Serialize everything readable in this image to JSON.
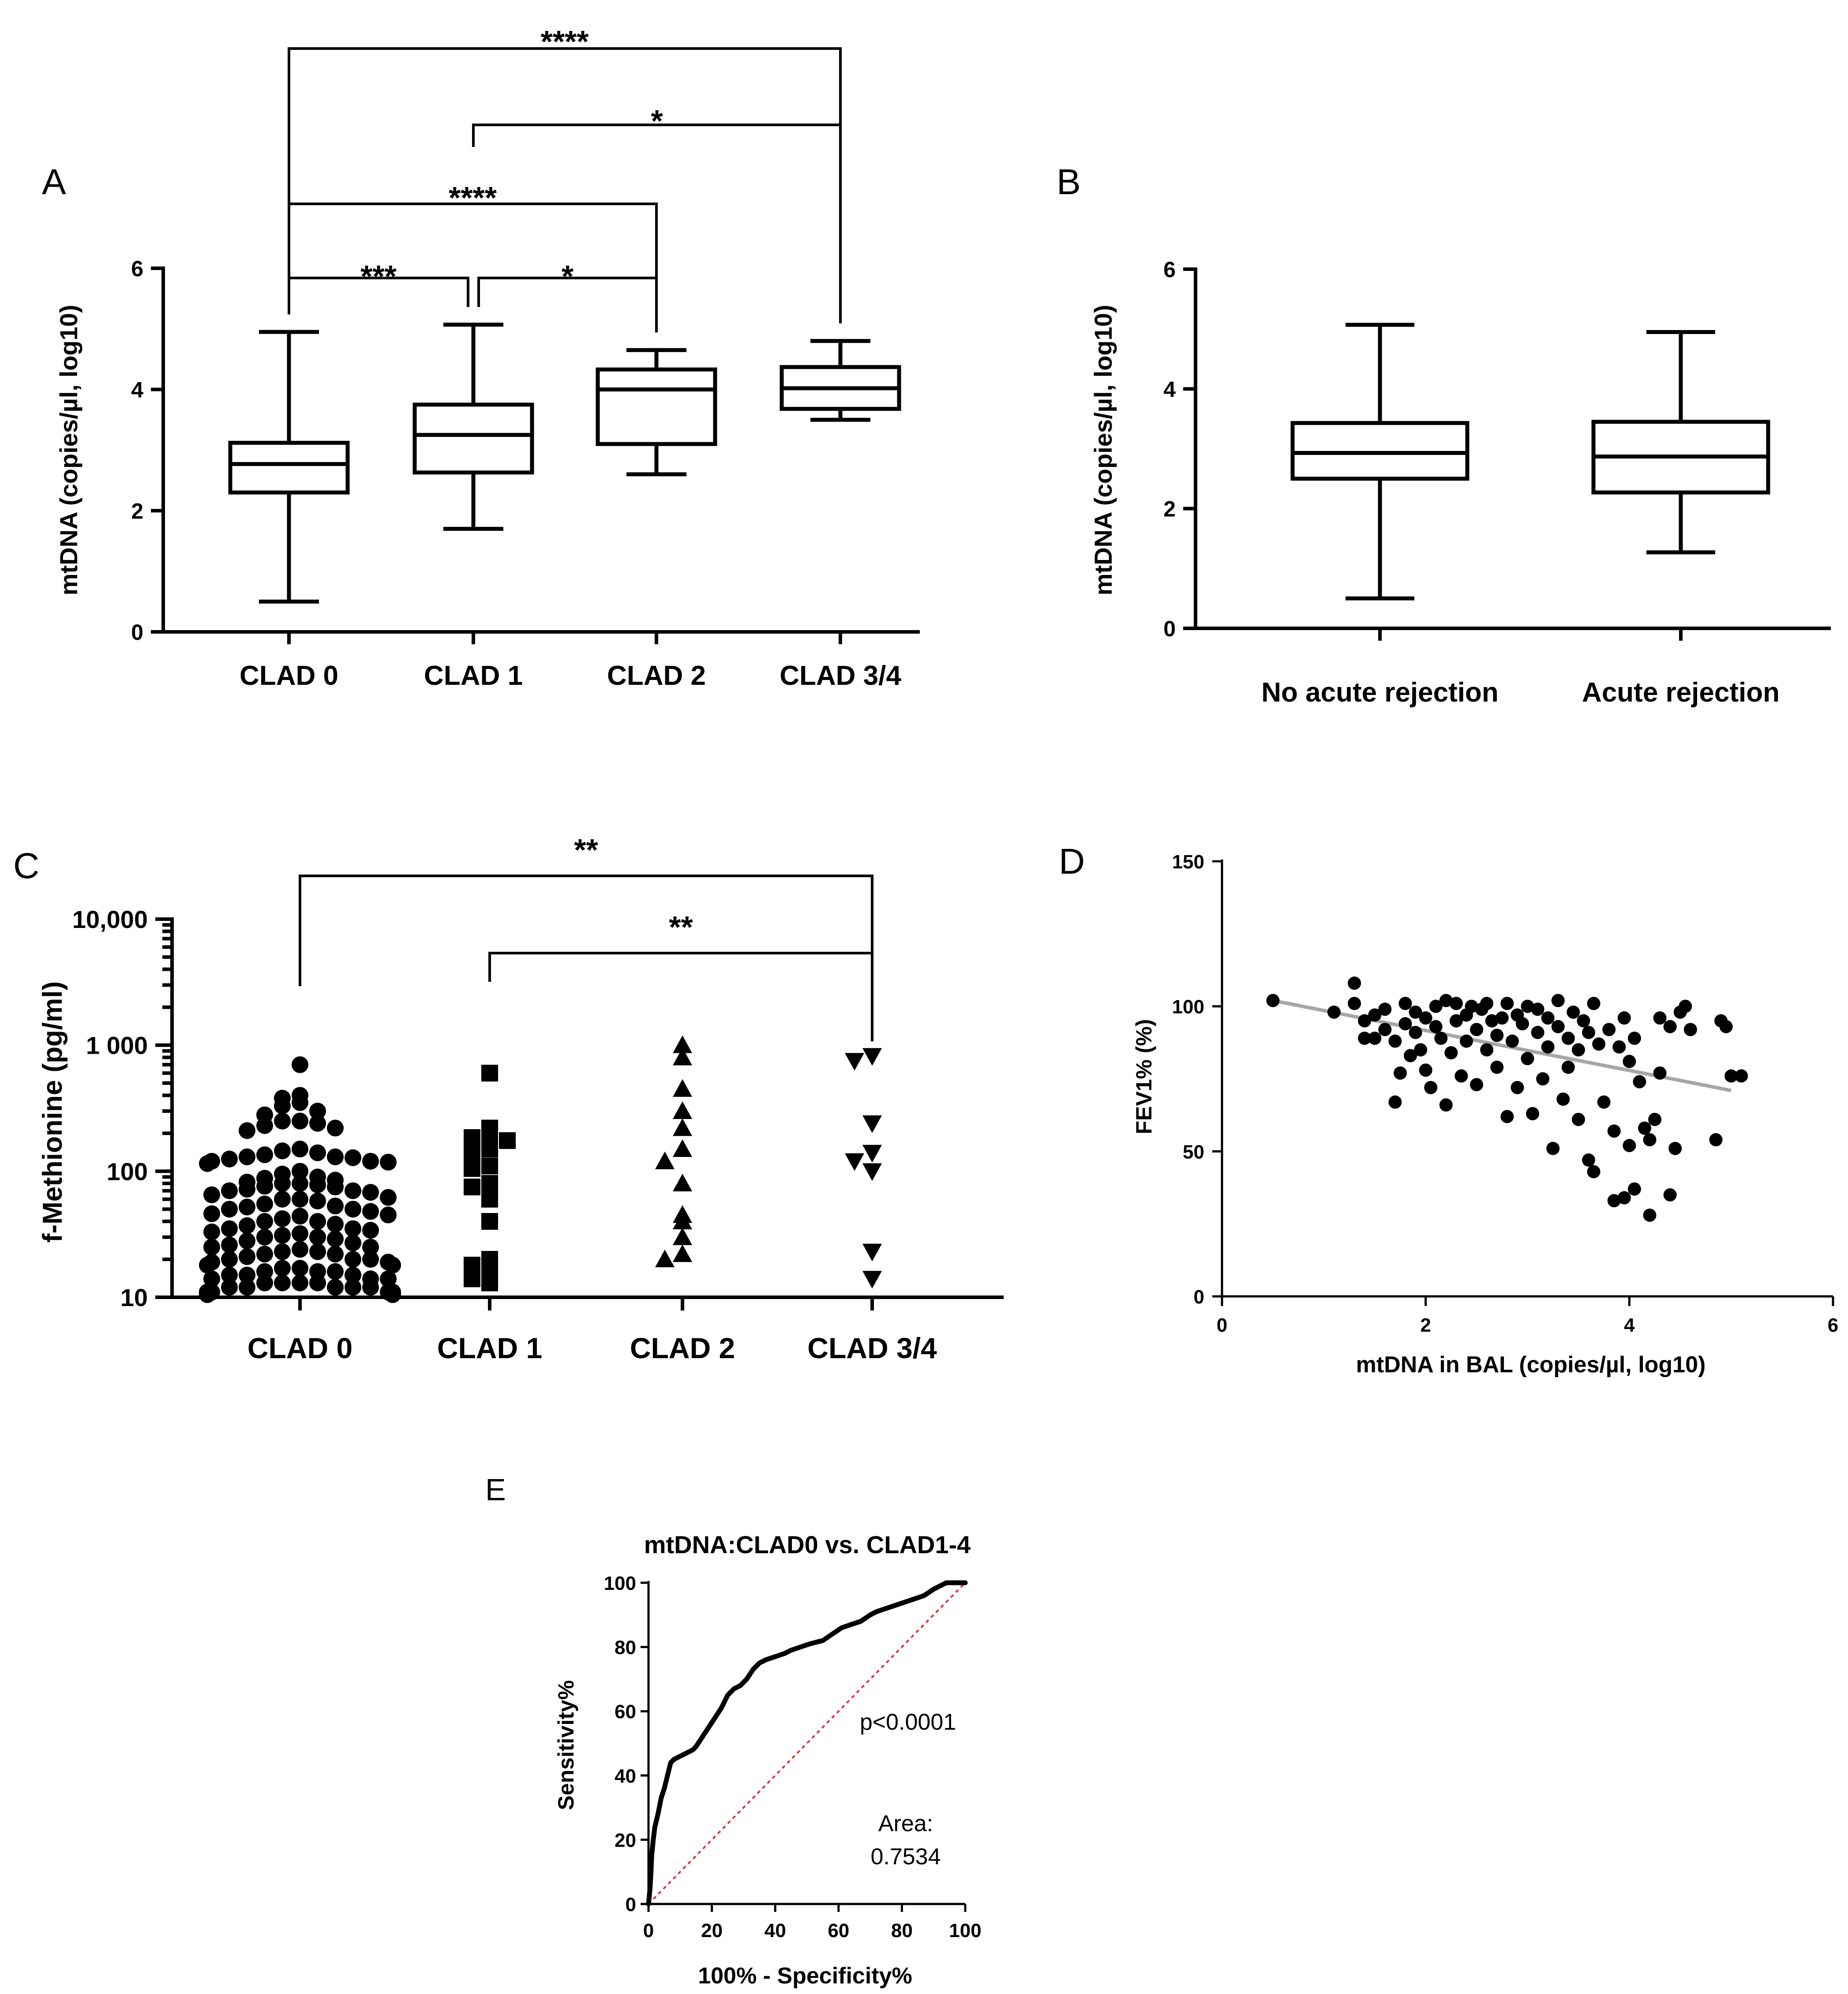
{
  "colors": {
    "ink": "#000000",
    "fit_line": "#a6a6a6",
    "roc_ref": "#e03030"
  },
  "chart_data": [
    {
      "panel": "A",
      "type": "box",
      "categories": [
        "CLAD 0",
        "CLAD 1",
        "CLAD 2",
        "CLAD 3/4"
      ],
      "ylabel": "mtDNA (copies/µl, log10)",
      "ylim": [
        0,
        6
      ],
      "yticks": [
        "0",
        "2",
        "4",
        "6"
      ],
      "boxes": [
        {
          "min": 0.5,
          "q1": 2.3,
          "median": 2.77,
          "q3": 3.12,
          "max": 4.95
        },
        {
          "min": 1.7,
          "q1": 2.63,
          "median": 3.25,
          "q3": 3.75,
          "max": 5.07
        },
        {
          "min": 2.6,
          "q1": 3.1,
          "median": 4.0,
          "q3": 4.33,
          "max": 4.65
        },
        {
          "min": 3.5,
          "q1": 3.68,
          "median": 4.02,
          "q3": 4.37,
          "max": 4.8
        }
      ],
      "comparisons": [
        {
          "from": "CLAD 0",
          "to": "CLAD 3/4",
          "label": "****"
        },
        {
          "from": "CLAD 1",
          "to": "CLAD 3/4",
          "label": "*"
        },
        {
          "from": "CLAD 0",
          "to": "CLAD 2",
          "label": "****"
        },
        {
          "from": "CLAD 0",
          "to": "CLAD 1",
          "label": "***"
        },
        {
          "from": "CLAD 1",
          "to": "CLAD 2",
          "label": "*"
        }
      ]
    },
    {
      "panel": "B",
      "type": "box",
      "categories": [
        "No acute rejection",
        "Acute rejection"
      ],
      "ylabel": "mtDNA (copies/µl, log10)",
      "ylim": [
        0,
        6
      ],
      "yticks": [
        "0",
        "2",
        "4",
        "6"
      ],
      "boxes": [
        {
          "min": 0.5,
          "q1": 2.5,
          "median": 2.93,
          "q3": 3.43,
          "max": 5.07
        },
        {
          "min": 1.27,
          "q1": 2.27,
          "median": 2.87,
          "q3": 3.45,
          "max": 4.95
        }
      ]
    },
    {
      "panel": "C",
      "type": "scatter",
      "scale": "log",
      "categories": [
        "CLAD 0",
        "CLAD 1",
        "CLAD 2",
        "CLAD 3/4"
      ],
      "ylabel": "f-Methionine (pg/ml)",
      "ylim": [
        10,
        10000
      ],
      "yticks": [
        "10",
        "100",
        "1 000",
        "10,000"
      ],
      "marker_shapes": [
        "circle",
        "square",
        "triangle-up",
        "triangle-down"
      ],
      "series": [
        {
          "name": "CLAD 0",
          "values": [
            700,
            400,
            380,
            350,
            330,
            300,
            280,
            250,
            250,
            240,
            230,
            220,
            210,
            150,
            145,
            140,
            135,
            130,
            130,
            128,
            125,
            120,
            120,
            118,
            115,
            100,
            95,
            90,
            88,
            85,
            82,
            80,
            80,
            78,
            76,
            75,
            72,
            70,
            70,
            68,
            65,
            62,
            60,
            60,
            58,
            55,
            53,
            52,
            50,
            50,
            48,
            46,
            45,
            44,
            42,
            40,
            40,
            38,
            37,
            35,
            35,
            34,
            33,
            32,
            31,
            30,
            30,
            29,
            28,
            27,
            26,
            25,
            25,
            24,
            23,
            23,
            22,
            22,
            21,
            20,
            20,
            20,
            19,
            19,
            18,
            18,
            17,
            17,
            16,
            16,
            16,
            15,
            15,
            15,
            14,
            14,
            14,
            13,
            13,
            13,
            13,
            12,
            12,
            12,
            12,
            12,
            11,
            11,
            11,
            11,
            11,
            11,
            11,
            10.5,
            10.5,
            10.5,
            10.5,
            10.5,
            10.5,
            10.5,
            10.5
          ]
        },
        {
          "name": "CLAD 1",
          "values": [
            600,
            220,
            190,
            185,
            175,
            150,
            140,
            110,
            105,
            80,
            75,
            60,
            40,
            20,
            18,
            17,
            14,
            13
          ]
        },
        {
          "name": "CLAD 2",
          "values": [
            1000,
            800,
            450,
            300,
            220,
            150,
            120,
            80,
            45,
            40,
            30,
            22,
            20
          ]
        },
        {
          "name": "CLAD 3/4",
          "values": [
            820,
            750,
            240,
            140,
            120,
            100,
            23,
            14
          ]
        }
      ],
      "comparisons": [
        {
          "from": "CLAD 0",
          "to": "CLAD 3/4",
          "label": "**"
        },
        {
          "from": "CLAD 1",
          "to": "CLAD 3/4",
          "label": "**"
        }
      ]
    },
    {
      "panel": "D",
      "type": "scatter",
      "xlabel": "mtDNA in BAL (copies/µl, log10)",
      "ylabel": "FEV1% (%)",
      "xlim": [
        0,
        6
      ],
      "ylim": [
        0,
        150
      ],
      "xticks": [
        "0",
        "2",
        "4",
        "6"
      ],
      "yticks": [
        "0",
        "50",
        "100",
        "150"
      ],
      "fit_line": {
        "x": [
          0.5,
          5.0
        ],
        "y": [
          102,
          71
        ]
      },
      "points": [
        [
          0.5,
          102
        ],
        [
          1.1,
          98
        ],
        [
          1.3,
          108
        ],
        [
          1.3,
          101
        ],
        [
          1.4,
          95
        ],
        [
          1.4,
          89
        ],
        [
          1.5,
          97
        ],
        [
          1.5,
          89
        ],
        [
          1.6,
          99
        ],
        [
          1.6,
          92
        ],
        [
          1.7,
          88
        ],
        [
          1.7,
          67
        ],
        [
          1.75,
          77
        ],
        [
          1.8,
          101
        ],
        [
          1.8,
          94
        ],
        [
          1.85,
          83
        ],
        [
          1.9,
          98
        ],
        [
          1.9,
          91
        ],
        [
          1.95,
          85
        ],
        [
          2.0,
          78
        ],
        [
          2.0,
          96
        ],
        [
          2.05,
          72
        ],
        [
          2.1,
          93
        ],
        [
          2.1,
          100
        ],
        [
          2.15,
          89
        ],
        [
          2.2,
          102
        ],
        [
          2.2,
          66
        ],
        [
          2.25,
          84
        ],
        [
          2.3,
          95
        ],
        [
          2.3,
          101
        ],
        [
          2.35,
          76
        ],
        [
          2.4,
          88
        ],
        [
          2.4,
          97
        ],
        [
          2.45,
          100
        ],
        [
          2.5,
          73
        ],
        [
          2.5,
          92
        ],
        [
          2.55,
          99
        ],
        [
          2.6,
          85
        ],
        [
          2.6,
          101
        ],
        [
          2.65,
          95
        ],
        [
          2.7,
          90
        ],
        [
          2.7,
          79
        ],
        [
          2.75,
          96
        ],
        [
          2.8,
          101
        ],
        [
          2.8,
          62
        ],
        [
          2.85,
          88
        ],
        [
          2.9,
          97
        ],
        [
          2.9,
          72
        ],
        [
          2.95,
          94
        ],
        [
          3.0,
          100
        ],
        [
          3.0,
          82
        ],
        [
          3.05,
          63
        ],
        [
          3.1,
          91
        ],
        [
          3.1,
          99
        ],
        [
          3.15,
          75
        ],
        [
          3.2,
          96
        ],
        [
          3.2,
          86
        ],
        [
          3.25,
          51
        ],
        [
          3.3,
          93
        ],
        [
          3.3,
          102
        ],
        [
          3.35,
          68
        ],
        [
          3.4,
          89
        ],
        [
          3.4,
          79
        ],
        [
          3.45,
          98
        ],
        [
          3.5,
          85
        ],
        [
          3.5,
          61
        ],
        [
          3.55,
          95
        ],
        [
          3.6,
          47
        ],
        [
          3.6,
          91
        ],
        [
          3.65,
          101
        ],
        [
          3.65,
          43
        ],
        [
          3.7,
          87
        ],
        [
          3.75,
          67
        ],
        [
          3.8,
          92
        ],
        [
          3.85,
          57
        ],
        [
          3.9,
          86
        ],
        [
          3.95,
          96
        ],
        [
          4.0,
          52
        ],
        [
          4.0,
          81
        ],
        [
          4.05,
          89
        ],
        [
          4.1,
          74
        ],
        [
          4.15,
          58
        ],
        [
          4.2,
          54
        ],
        [
          4.25,
          61
        ],
        [
          4.3,
          77
        ],
        [
          4.3,
          96
        ],
        [
          4.4,
          93
        ],
        [
          4.45,
          51
        ],
        [
          4.5,
          98
        ],
        [
          4.55,
          100
        ],
        [
          4.6,
          92
        ],
        [
          4.2,
          28
        ],
        [
          3.85,
          33
        ],
        [
          3.95,
          34
        ],
        [
          4.05,
          37
        ],
        [
          4.4,
          35
        ],
        [
          4.85,
          54
        ],
        [
          4.9,
          95
        ],
        [
          4.95,
          93
        ],
        [
          5.0,
          76
        ],
        [
          5.1,
          76
        ]
      ]
    },
    {
      "panel": "E",
      "type": "line",
      "title": "mtDNA:CLAD0 vs. CLAD1-4",
      "xlabel": "100% - Specificity%",
      "ylabel": "Sensitivity%",
      "xlim": [
        0,
        100
      ],
      "ylim": [
        0,
        100
      ],
      "xticks": [
        "0",
        "20",
        "40",
        "60",
        "80",
        "100"
      ],
      "yticks": [
        "0",
        "20",
        "40",
        "60",
        "80",
        "100"
      ],
      "roc_curve": [
        [
          0,
          0
        ],
        [
          0.5,
          5
        ],
        [
          0.8,
          10
        ],
        [
          1,
          15
        ],
        [
          1.5,
          20
        ],
        [
          2,
          24
        ],
        [
          3,
          28
        ],
        [
          4,
          33
        ],
        [
          5,
          36
        ],
        [
          6,
          40
        ],
        [
          7,
          44
        ],
        [
          8,
          45
        ],
        [
          10,
          46
        ],
        [
          12,
          47
        ],
        [
          14,
          48
        ],
        [
          15,
          49
        ],
        [
          17,
          52
        ],
        [
          19,
          55
        ],
        [
          21,
          58
        ],
        [
          23,
          61
        ],
        [
          24,
          63
        ],
        [
          25,
          65
        ],
        [
          27,
          67
        ],
        [
          29,
          68
        ],
        [
          31,
          70
        ],
        [
          33,
          73
        ],
        [
          35,
          75
        ],
        [
          37,
          76
        ],
        [
          40,
          77
        ],
        [
          43,
          78
        ],
        [
          45,
          79
        ],
        [
          48,
          80
        ],
        [
          51,
          81
        ],
        [
          55,
          82
        ],
        [
          58,
          84
        ],
        [
          61,
          86
        ],
        [
          64,
          87
        ],
        [
          67,
          88
        ],
        [
          70,
          90
        ],
        [
          72,
          91
        ],
        [
          75,
          92
        ],
        [
          78,
          93
        ],
        [
          81,
          94
        ],
        [
          84,
          95
        ],
        [
          87,
          96
        ],
        [
          90,
          98
        ],
        [
          92,
          99
        ],
        [
          94,
          100
        ],
        [
          100,
          100
        ]
      ],
      "reference_line": [
        [
          0,
          0
        ],
        [
          100,
          100
        ]
      ],
      "annotations": {
        "p_value": "p<0.0001",
        "area_label": "Area:",
        "area_value": "0.7534"
      }
    }
  ]
}
